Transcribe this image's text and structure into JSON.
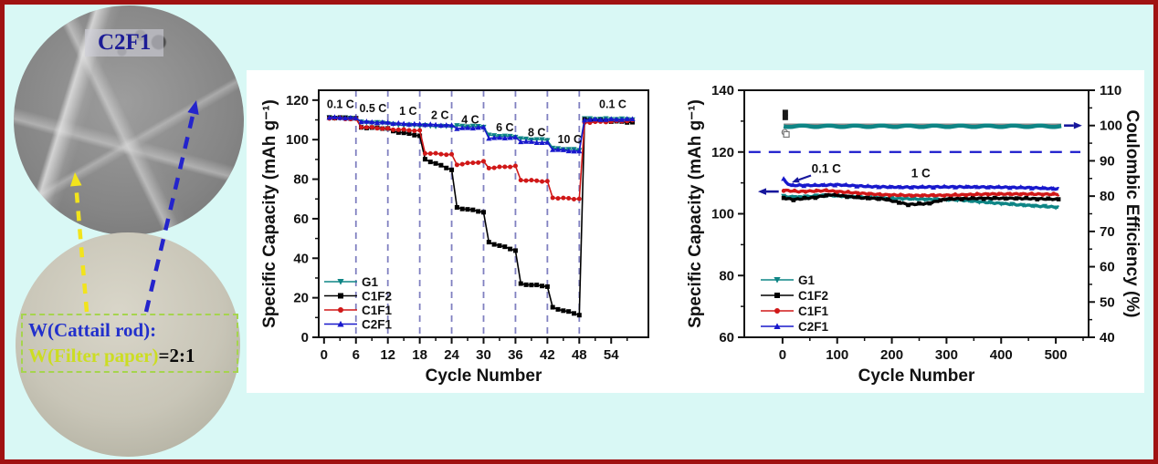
{
  "canvas": {
    "background": "#d9f8f5",
    "border_color": "#a01212",
    "panel_color": "#ffffff"
  },
  "left_panel": {
    "sem_label": "C2F1",
    "ratio_line1": "W(Cattail rod):",
    "ratio_line2_highlight": "W(Filter paper)",
    "ratio_line2_suffix": "=2:1",
    "arrows": [
      {
        "name": "yellow-dashed-arrow",
        "color": "#f2e41c"
      },
      {
        "name": "blue-dashed-arrow",
        "color": "#2424cc"
      }
    ]
  },
  "chart_data": [
    {
      "id": "rate-capability",
      "type": "line",
      "xlabel": "Cycle Number",
      "ylabel": "Specific Capacity (mAh g⁻¹)",
      "xlim": [
        -1,
        61
      ],
      "ylim": [
        0,
        125
      ],
      "xticks": [
        0,
        6,
        12,
        18,
        24,
        30,
        36,
        42,
        48,
        54
      ],
      "yticks": [
        0,
        20,
        40,
        60,
        80,
        100,
        120
      ],
      "x_minor": [
        3,
        9,
        15,
        21,
        27,
        33,
        39,
        45,
        51,
        57
      ],
      "y_minor": [
        10,
        30,
        50,
        70,
        90,
        110
      ],
      "grid": false,
      "vlines": [
        6,
        12,
        18,
        24,
        30,
        36,
        42,
        48
      ],
      "vline_color": "#8080c0",
      "annotation_color": "#1a1a8e",
      "rate_labels": [
        {
          "text": "0.1 C",
          "x": 3.1,
          "y": 116
        },
        {
          "text": "0.5 C",
          "x": 9.2,
          "y": 114
        },
        {
          "text": "1 C",
          "x": 15.8,
          "y": 112.5
        },
        {
          "text": "2 C",
          "x": 21.8,
          "y": 110.5
        },
        {
          "text": "4 C",
          "x": 27.5,
          "y": 108.2
        },
        {
          "text": "6 C",
          "x": 34,
          "y": 104.3
        },
        {
          "text": "8 C",
          "x": 40,
          "y": 101.8
        },
        {
          "text": "10 C",
          "x": 46.2,
          "y": 98.3
        },
        {
          "text": "0.1 C",
          "x": 54.3,
          "y": 116
        }
      ],
      "segments": [
        [
          1,
          6
        ],
        [
          7,
          12
        ],
        [
          13,
          18
        ],
        [
          19,
          24
        ],
        [
          25,
          30
        ],
        [
          31,
          36
        ],
        [
          37,
          42
        ],
        [
          43,
          48
        ],
        [
          49,
          58
        ]
      ],
      "series": [
        {
          "name": "G1",
          "color": "#0e8585",
          "marker": "triangle-down",
          "values": [
            [
              111,
              110.9
            ],
            [
              108.8,
              108.4
            ],
            [
              107.6,
              107.1
            ],
            [
              107,
              106.6
            ],
            [
              107,
              106.6
            ],
            [
              102.2,
              101.5
            ],
            [
              100.4,
              99.8
            ],
            [
              95.6,
              94.8
            ],
            [
              110.6,
              110.3
            ]
          ]
        },
        {
          "name": "C1F2",
          "color": "#000000",
          "marker": "square",
          "values": [
            [
              111.2,
              110.8
            ],
            [
              106.2,
              105.7
            ],
            [
              104.3,
              102
            ],
            [
              90,
              84.8
            ],
            [
              65.6,
              63.4
            ],
            [
              48,
              44
            ],
            [
              27,
              25.8
            ],
            [
              15,
              11.4
            ],
            [
              110,
              108.8
            ]
          ]
        },
        {
          "name": "C1F1",
          "color": "#d01818",
          "marker": "circle",
          "values": [
            [
              110.9,
              110.4
            ],
            [
              106.4,
              105.5
            ],
            [
              105.2,
              104.5
            ],
            [
              93.2,
              92.4
            ],
            [
              87.4,
              88.9
            ],
            [
              85.7,
              86.6
            ],
            [
              79.6,
              78.9
            ],
            [
              70.6,
              70
            ],
            [
              108.7,
              109.6
            ]
          ]
        },
        {
          "name": "C2F1",
          "color": "#1818cc",
          "marker": "triangle-up",
          "values": [
            [
              111.3,
              110.9
            ],
            [
              109.1,
              108.6
            ],
            [
              108.3,
              107.8
            ],
            [
              107.7,
              107.2
            ],
            [
              105.7,
              106.2
            ],
            [
              100.8,
              101.1
            ],
            [
              99.1,
              98.4
            ],
            [
              95.1,
              94
            ],
            [
              110.1,
              110.4
            ]
          ]
        }
      ]
    },
    {
      "id": "cycling-stability",
      "type": "line-dual-axis",
      "xlabel": "Cycle Number",
      "ylabel_left": "Specific Capacity (mAh g⁻¹)",
      "ylabel_right": "Coulombic Efficiency (%)",
      "xlim": [
        -70,
        560
      ],
      "ylim_left": [
        60,
        140
      ],
      "ylim_right": [
        40,
        110
      ],
      "xticks": [
        0,
        100,
        200,
        300,
        400,
        500
      ],
      "yticks_left": [
        60,
        80,
        100,
        120,
        140
      ],
      "yticks_right": [
        40,
        50,
        60,
        70,
        80,
        90,
        100,
        110
      ],
      "x_minor": [
        50,
        150,
        250,
        350,
        450,
        550
      ],
      "y_left_minor": [
        70,
        90,
        110,
        130
      ],
      "y_right_minor": [
        45,
        55,
        65,
        75,
        85,
        95,
        105
      ],
      "hline": {
        "y": 120,
        "color": "#1a1acc"
      },
      "annotation_color": "#1a1a8e",
      "annotations": [
        {
          "text": "0.1 C",
          "x": 80,
          "y": 113.3,
          "arrow": {
            "from": [
              52,
              112.4
            ],
            "to": [
              17,
              110.2
            ]
          }
        },
        {
          "text": "1 C",
          "x": 253,
          "y": 111.8
        }
      ],
      "left_axis_arrow": {
        "from_x": -7,
        "to_x": -45,
        "y": 107.2
      },
      "right_axis_arrow": {
        "from_x": 515,
        "to_x": 548,
        "efficiency": 100
      },
      "efficiency_band": {
        "value": 99.8,
        "gray_value": 100.35,
        "x_start": 2,
        "x_end": 510,
        "color": "#0e8585",
        "gray_color": "#8a8a8a"
      },
      "outliers": [
        {
          "x": 5,
          "y": 132.8,
          "marker": "square",
          "filled": true,
          "color": "#1a1a1a"
        },
        {
          "x": 5,
          "y": 131.2,
          "marker": "square",
          "filled": true,
          "color": "#1a1a1a"
        },
        {
          "x": 4,
          "y": 126.4,
          "marker": "circle",
          "filled": false,
          "color": "#777777"
        },
        {
          "x": 7,
          "y": 125.7,
          "marker": "square",
          "filled": false,
          "color": "#777777"
        }
      ],
      "series": [
        {
          "name": "G1",
          "color": "#0e8585",
          "marker": "triangle-down",
          "points": [
            [
              2,
              105.6
            ],
            [
              30,
              105.4
            ],
            [
              80,
              106
            ],
            [
              140,
              105.4
            ],
            [
              200,
              105
            ],
            [
              260,
              104.7
            ],
            [
              320,
              104.5
            ],
            [
              380,
              103.6
            ],
            [
              440,
              102.8
            ],
            [
              505,
              102.1
            ]
          ]
        },
        {
          "name": "C1F2",
          "color": "#000000",
          "marker": "square",
          "points": [
            [
              2,
              105.1
            ],
            [
              20,
              104.6
            ],
            [
              60,
              105.3
            ],
            [
              90,
              106.2
            ],
            [
              140,
              105.2
            ],
            [
              185,
              104.8
            ],
            [
              230,
              103
            ],
            [
              265,
              103.3
            ],
            [
              300,
              104.8
            ],
            [
              360,
              105
            ],
            [
              430,
              105
            ],
            [
              505,
              104.7
            ]
          ]
        },
        {
          "name": "C1F1",
          "color": "#d01818",
          "marker": "circle",
          "points": [
            [
              2,
              107.6
            ],
            [
              30,
              107.2
            ],
            [
              80,
              107.5
            ],
            [
              130,
              106.8
            ],
            [
              180,
              106.2
            ],
            [
              240,
              105.9
            ],
            [
              300,
              106
            ],
            [
              380,
              106.4
            ],
            [
              440,
              106.4
            ],
            [
              505,
              106.3
            ]
          ]
        },
        {
          "name": "C2F1",
          "color": "#1818cc",
          "marker": "triangle-up",
          "points": [
            [
              2,
              111.2
            ],
            [
              6,
              110.2
            ],
            [
              15,
              109.2
            ],
            [
              60,
              109.2
            ],
            [
              100,
              109.4
            ],
            [
              160,
              108.8
            ],
            [
              220,
              108.6
            ],
            [
              280,
              108.7
            ],
            [
              340,
              108.7
            ],
            [
              400,
              108.6
            ],
            [
              460,
              108.4
            ],
            [
              505,
              108.1
            ]
          ]
        }
      ]
    }
  ]
}
